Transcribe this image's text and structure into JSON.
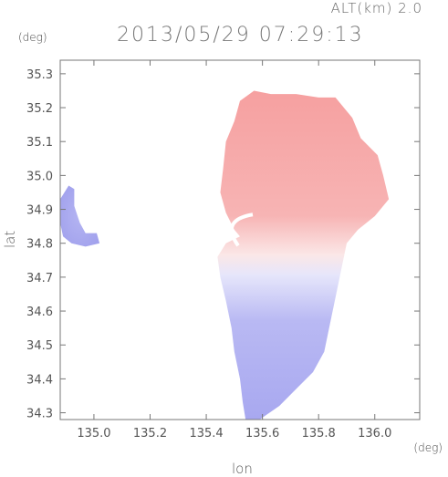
{
  "header": {
    "alt_label": "ALT(km)  2.0",
    "timestamp": "2013/05/29 07:29:13"
  },
  "chart_data": {
    "type": "heatmap",
    "title": "2013/05/29 07:29:13",
    "xlabel": "lon",
    "ylabel": "lat",
    "x_unit": "(deg)",
    "y_unit": "(deg)",
    "xlim": [
      134.88,
      136.16
    ],
    "ylim": [
      34.28,
      35.34
    ],
    "x_ticks": [
      135.0,
      135.2,
      135.4,
      135.6,
      135.8,
      136.0
    ],
    "x_tick_labels": [
      "135.0",
      "135.2",
      "135.4",
      "135.6",
      "135.8",
      "136.0"
    ],
    "y_ticks": [
      34.3,
      34.4,
      34.5,
      34.6,
      34.7,
      34.8,
      34.9,
      35.0,
      35.1,
      35.2,
      35.3
    ],
    "y_tick_labels": [
      "34.3",
      "34.4",
      "34.5",
      "34.6",
      "34.7",
      "34.8",
      "34.9",
      "35.0",
      "35.1",
      "35.2",
      "35.3"
    ],
    "grid": false,
    "colors": {
      "positive": "#f58b8b",
      "negative": "#9f9ff0",
      "neutral": "#ffffff"
    },
    "radar_center": [
      135.52,
      34.82
    ],
    "main_region": [
      [
        135.52,
        34.82
      ],
      [
        135.5,
        34.84
      ],
      [
        135.47,
        34.89
      ],
      [
        135.45,
        34.95
      ],
      [
        135.46,
        35.02
      ],
      [
        135.47,
        35.1
      ],
      [
        135.5,
        35.16
      ],
      [
        135.52,
        35.22
      ],
      [
        135.57,
        35.25
      ],
      [
        135.63,
        35.24
      ],
      [
        135.72,
        35.24
      ],
      [
        135.8,
        35.23
      ],
      [
        135.86,
        35.23
      ],
      [
        135.92,
        35.17
      ],
      [
        135.95,
        35.11
      ],
      [
        136.01,
        35.06
      ],
      [
        136.03,
        35.0
      ],
      [
        136.05,
        34.93
      ],
      [
        136.0,
        34.88
      ],
      [
        135.94,
        34.84
      ],
      [
        135.9,
        34.8
      ],
      [
        135.88,
        34.72
      ],
      [
        135.86,
        34.64
      ],
      [
        135.84,
        34.56
      ],
      [
        135.82,
        34.48
      ],
      [
        135.78,
        34.42
      ],
      [
        135.72,
        34.37
      ],
      [
        135.66,
        34.32
      ],
      [
        135.59,
        34.28
      ],
      [
        135.54,
        34.28
      ],
      [
        135.53,
        34.33
      ],
      [
        135.52,
        34.4
      ],
      [
        135.5,
        34.48
      ],
      [
        135.49,
        34.55
      ],
      [
        135.47,
        34.63
      ],
      [
        135.45,
        34.7
      ],
      [
        135.44,
        34.76
      ],
      [
        135.47,
        34.8
      ]
    ],
    "west_patch": [
      [
        134.88,
        34.93
      ],
      [
        134.91,
        34.97
      ],
      [
        134.93,
        34.96
      ],
      [
        134.93,
        34.91
      ],
      [
        134.95,
        34.86
      ],
      [
        134.97,
        34.83
      ],
      [
        135.01,
        34.83
      ],
      [
        135.02,
        34.8
      ],
      [
        134.97,
        34.79
      ],
      [
        134.92,
        34.8
      ],
      [
        134.89,
        34.82
      ],
      [
        134.88,
        34.86
      ]
    ]
  }
}
